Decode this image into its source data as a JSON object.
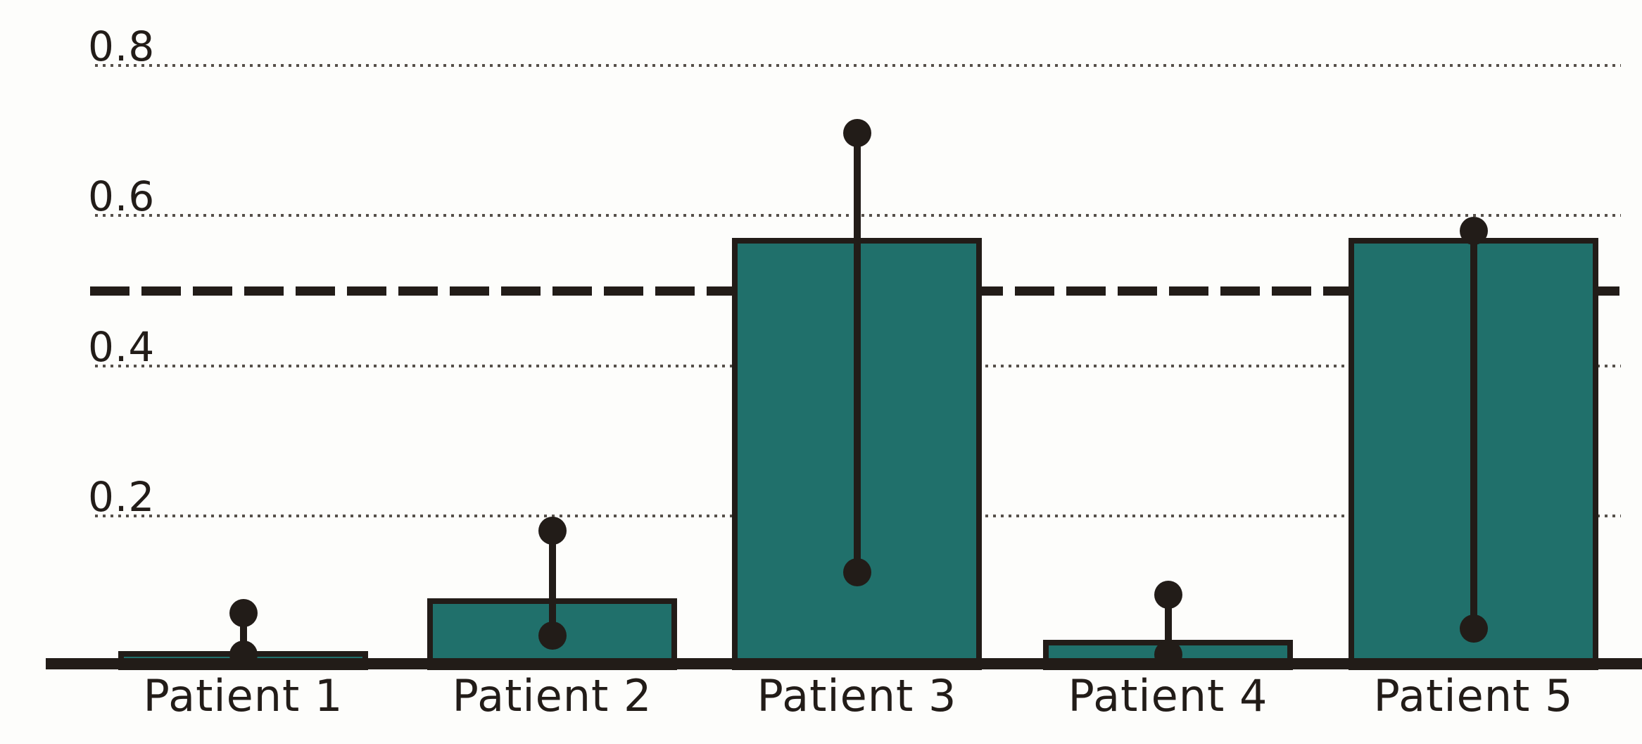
{
  "chart_data": {
    "type": "bar",
    "title": "",
    "xlabel": "",
    "ylabel": "",
    "categories": [
      "Patient 1",
      "Patient 2",
      "Patient 3",
      "Patient 4",
      "Patient 5"
    ],
    "series": [
      {
        "name": "bar-value",
        "values": [
          0.02,
          0.09,
          0.57,
          0.035,
          0.57
        ]
      },
      {
        "name": "point-range-low",
        "values": [
          0.015,
          0.04,
          0.125,
          0.015,
          0.05
        ]
      },
      {
        "name": "point-range-high",
        "values": [
          0.07,
          0.18,
          0.71,
          0.095,
          0.58
        ]
      }
    ],
    "threshold_line": 0.5,
    "yticks": [
      0.8,
      0.6,
      0.4,
      0.2
    ],
    "ylim": [
      0,
      0.87
    ],
    "grid": "dotted-horizontal",
    "legend": "none",
    "error_marker": "filled-circle-capped-range",
    "colors": {
      "bar_fill": "#20706b",
      "ink": "#221c18",
      "grid_dots": "#56504a",
      "background": "#fdfdfb"
    }
  }
}
